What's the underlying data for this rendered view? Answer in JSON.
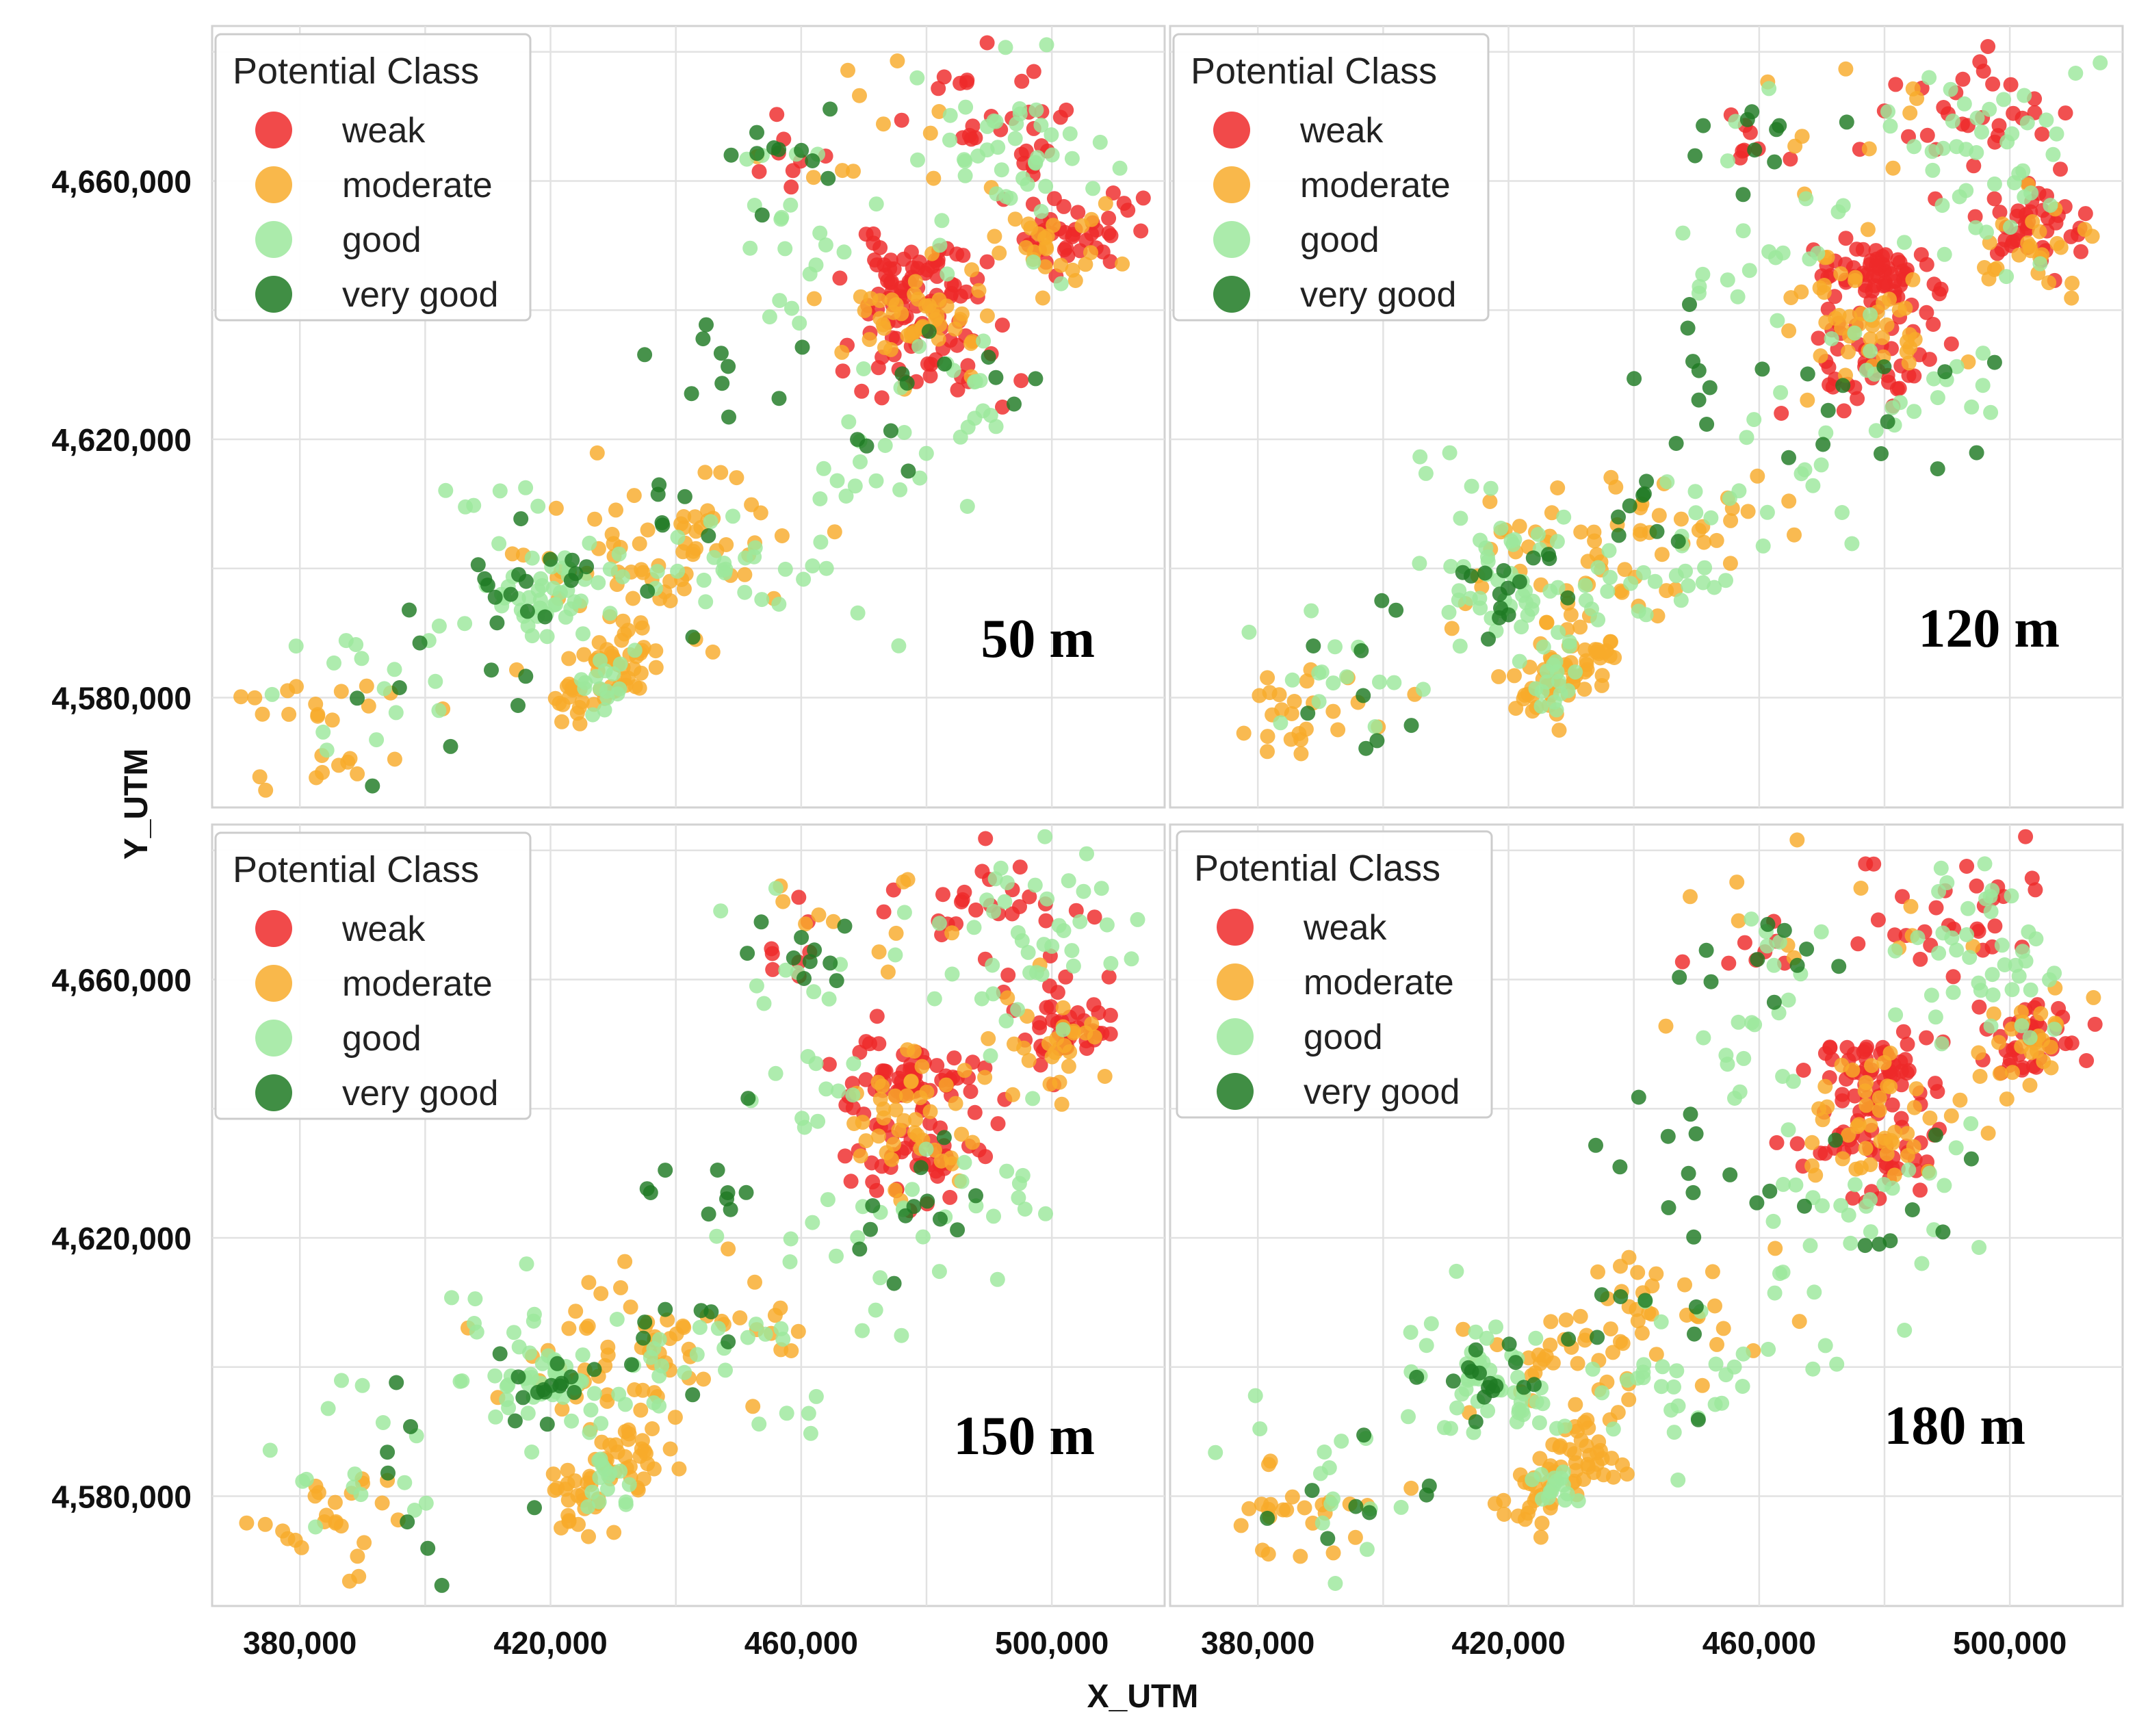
{
  "figure": {
    "xlabel": "X_UTM",
    "ylabel": "Y_UTM",
    "x_ticks": [
      380000,
      420000,
      460000,
      500000
    ],
    "y_ticks": [
      4580000,
      4620000,
      4660000
    ],
    "x_tick_labels": [
      "380,000",
      "420,000",
      "460,000",
      "500,000"
    ],
    "y_tick_labels": [
      "4,580,000",
      "4,620,000",
      "4,660,000"
    ],
    "legend_title": "Potential Class"
  },
  "classes": [
    {
      "key": "weak",
      "label": "weak",
      "color": "#ee2a2a"
    },
    {
      "key": "moderate",
      "label": "moderate",
      "color": "#f8ab2b"
    },
    {
      "key": "good",
      "label": "good",
      "color": "#9ce89c"
    },
    {
      "key": "very_good",
      "label": "very good",
      "color": "#1f7a23"
    }
  ],
  "chart_data": [
    {
      "type": "scatter",
      "title": "",
      "label": "50 m",
      "xlabel": "X_UTM",
      "ylabel": "Y_UTM",
      "xlim": [
        366000,
        518000
      ],
      "ylim": [
        4563000,
        4684000
      ],
      "grid": true,
      "legend": "top-left",
      "seed": 11
    },
    {
      "type": "scatter",
      "title": "",
      "label": "120 m",
      "xlabel": "X_UTM",
      "ylabel": "Y_UTM",
      "xlim": [
        366000,
        518000
      ],
      "ylim": [
        4563000,
        4684000
      ],
      "grid": true,
      "legend": "top-left",
      "seed": 23
    },
    {
      "type": "scatter",
      "title": "",
      "label": "150 m",
      "xlabel": "X_UTM",
      "ylabel": "Y_UTM",
      "xlim": [
        366000,
        518000
      ],
      "ylim": [
        4563000,
        4684000
      ],
      "grid": true,
      "legend": "top-left",
      "seed": 37
    },
    {
      "type": "scatter",
      "title": "",
      "label": "180 m",
      "xlabel": "X_UTM",
      "ylabel": "Y_UTM",
      "xlim": [
        366000,
        518000
      ],
      "ylim": [
        4563000,
        4684000
      ],
      "grid": true,
      "legend": "top-left",
      "seed": 53
    }
  ],
  "point_clusters": [
    {
      "class": "weak",
      "cx": 478000,
      "cy": 4645000,
      "sx": 5000,
      "sy": 3000,
      "n": 60
    },
    {
      "class": "weak",
      "cx": 479000,
      "cy": 4633000,
      "sx": 6000,
      "sy": 4000,
      "n": 45
    },
    {
      "class": "weak",
      "cx": 503000,
      "cy": 4652000,
      "sx": 4000,
      "sy": 3000,
      "n": 40
    },
    {
      "class": "weak",
      "cx": 492000,
      "cy": 4670000,
      "sx": 7000,
      "sy": 5000,
      "n": 30
    },
    {
      "class": "weak",
      "cx": 458000,
      "cy": 4664000,
      "sx": 3000,
      "sy": 3000,
      "n": 8
    },
    {
      "class": "moderate",
      "cx": 477000,
      "cy": 4638000,
      "sx": 6000,
      "sy": 5000,
      "n": 45
    },
    {
      "class": "moderate",
      "cx": 502000,
      "cy": 4650000,
      "sx": 5000,
      "sy": 4000,
      "n": 25
    },
    {
      "class": "moderate",
      "cx": 432000,
      "cy": 4586000,
      "sx": 3000,
      "sy": 3000,
      "n": 35
    },
    {
      "class": "moderate",
      "cx": 425000,
      "cy": 4580000,
      "sx": 3000,
      "sy": 3000,
      "n": 25
    },
    {
      "class": "moderate",
      "cx": 430000,
      "cy": 4600000,
      "sx": 8000,
      "sy": 6000,
      "n": 40
    },
    {
      "class": "moderate",
      "cx": 385000,
      "cy": 4577000,
      "sx": 7000,
      "sy": 5000,
      "n": 25
    },
    {
      "class": "moderate",
      "cx": 445000,
      "cy": 4608000,
      "sx": 8000,
      "sy": 5000,
      "n": 25
    },
    {
      "class": "moderate",
      "cx": 470000,
      "cy": 4668000,
      "sx": 10000,
      "sy": 6000,
      "n": 12
    },
    {
      "class": "good",
      "cx": 495000,
      "cy": 4665000,
      "sx": 8000,
      "sy": 8000,
      "n": 45
    },
    {
      "class": "good",
      "cx": 420000,
      "cy": 4597000,
      "sx": 5000,
      "sy": 4000,
      "n": 40
    },
    {
      "class": "good",
      "cx": 448000,
      "cy": 4600000,
      "sx": 12000,
      "sy": 6000,
      "n": 30
    },
    {
      "class": "good",
      "cx": 460000,
      "cy": 4650000,
      "sx": 6000,
      "sy": 10000,
      "n": 20
    },
    {
      "class": "good",
      "cx": 390000,
      "cy": 4585000,
      "sx": 8000,
      "sy": 6000,
      "n": 15
    },
    {
      "class": "good",
      "cx": 428000,
      "cy": 4582000,
      "sx": 2000,
      "sy": 2000,
      "n": 15
    },
    {
      "class": "good",
      "cx": 470000,
      "cy": 4618000,
      "sx": 10000,
      "sy": 8000,
      "n": 15
    },
    {
      "class": "good",
      "cx": 410000,
      "cy": 4605000,
      "sx": 6000,
      "sy": 6000,
      "n": 10
    },
    {
      "class": "good",
      "cx": 485000,
      "cy": 4628000,
      "sx": 8000,
      "sy": 5000,
      "n": 15
    },
    {
      "class": "very_good",
      "cx": 418000,
      "cy": 4598000,
      "sx": 6000,
      "sy": 4000,
      "n": 15
    },
    {
      "class": "very_good",
      "cx": 480000,
      "cy": 4625000,
      "sx": 8000,
      "sy": 6000,
      "n": 12
    },
    {
      "class": "very_good",
      "cx": 445000,
      "cy": 4630000,
      "sx": 6000,
      "sy": 8000,
      "n": 10
    },
    {
      "class": "very_good",
      "cx": 460000,
      "cy": 4665000,
      "sx": 5000,
      "sy": 4000,
      "n": 10
    },
    {
      "class": "very_good",
      "cx": 398000,
      "cy": 4580000,
      "sx": 10000,
      "sy": 8000,
      "n": 10
    },
    {
      "class": "very_good",
      "cx": 440000,
      "cy": 4605000,
      "sx": 5000,
      "sy": 5000,
      "n": 8
    }
  ]
}
